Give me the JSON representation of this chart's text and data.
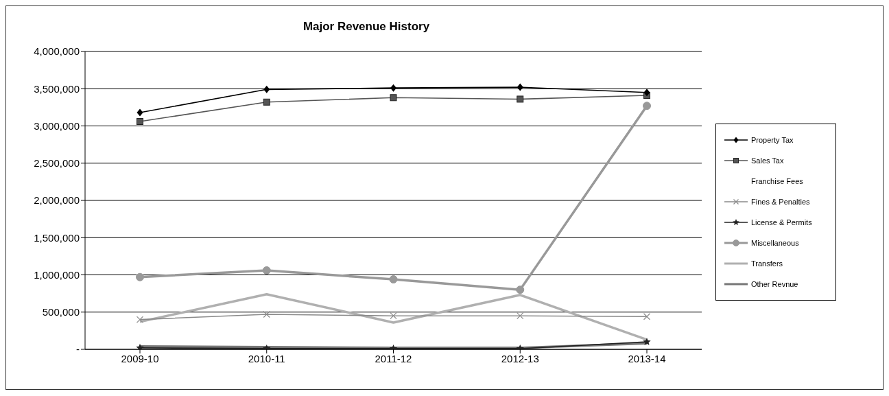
{
  "chart_data": {
    "type": "line",
    "title": "Major Revenue History",
    "categories": [
      "2009-10",
      "2010-11",
      "2011-12",
      "2012-13",
      "2013-14"
    ],
    "series": [
      {
        "name": "Property Tax",
        "color": "#000000",
        "marker": "diamond",
        "values": [
          3180000,
          3490000,
          3510000,
          3520000,
          3450000
        ]
      },
      {
        "name": "Sales Tax",
        "color": "#555555",
        "marker": "square",
        "values": [
          3060000,
          3320000,
          3380000,
          3360000,
          3410000
        ]
      },
      {
        "name": "Franchise Fees",
        "values": [
          null,
          null,
          null,
          null,
          null
        ]
      },
      {
        "name": "Fines & Penalties",
        "color": "#8a8a8a",
        "marker": "cross",
        "values": [
          400000,
          470000,
          450000,
          450000,
          440000
        ]
      },
      {
        "name": "License & Permits",
        "color": "#222222",
        "marker": "star",
        "values": [
          20000,
          10000,
          10000,
          10000,
          100000
        ]
      },
      {
        "name": "Miscellaneous",
        "color": "#999999",
        "marker": "circle",
        "values": [
          970000,
          1060000,
          940000,
          800000,
          3270000
        ]
      },
      {
        "name": "Transfers",
        "color": "#b0b0b0",
        "marker": "none",
        "values": [
          370000,
          740000,
          360000,
          730000,
          130000
        ]
      },
      {
        "name": "Other Revnue",
        "color": "#777777",
        "marker": "none",
        "values": [
          40000,
          30000,
          20000,
          20000,
          80000
        ]
      }
    ],
    "ylim": [
      0,
      4000000
    ],
    "yticks": [
      {
        "value": 0,
        "label": "-"
      },
      {
        "value": 500000,
        "label": "500,000"
      },
      {
        "value": 1000000,
        "label": "1,000,000"
      },
      {
        "value": 1500000,
        "label": "1,500,000"
      },
      {
        "value": 2000000,
        "label": "2,000,000"
      },
      {
        "value": 2500000,
        "label": "2,500,000"
      },
      {
        "value": 3000000,
        "label": "3,000,000"
      },
      {
        "value": 3500000,
        "label": "3,500,000"
      },
      {
        "value": 4000000,
        "label": "4,000,000"
      }
    ],
    "grid": "y",
    "legend": "right"
  }
}
